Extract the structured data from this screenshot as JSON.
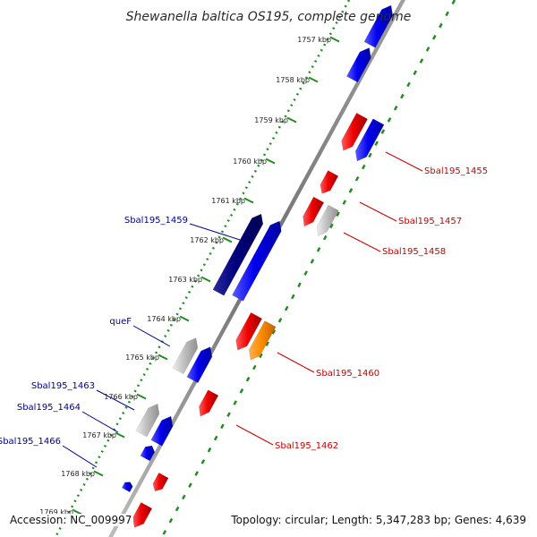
{
  "title": "Shewanella baltica OS195, complete genome",
  "footer": {
    "accession": "Accession: NC_009997",
    "summary": "Topology: circular; Length: 5,347,283 bp; Genes: 4,639"
  },
  "scale_labels": [
    "1757 kbp",
    "1758 kbp",
    "1759 kbp",
    "1760 kbp",
    "1761 kbp",
    "1762 kbp",
    "1763 kbp",
    "1764 kbp",
    "1765 kbp",
    "1766 kbp",
    "1767 kbp",
    "1768 kbp",
    "1769 kbp"
  ],
  "gene_labels_left": [
    "Sbal195_1459",
    "queF",
    "Sbal195_1463",
    "Sbal195_1464",
    "Sbal195_1466"
  ],
  "gene_labels_right": [
    "Sbal195_1455",
    "Sbal195_1457",
    "Sbal195_1458",
    "Sbal195_1460",
    "Sbal195_1462"
  ],
  "colors": {
    "forward_gene": "#0000ee",
    "forward_gene_selected": "#000080",
    "reverse_gene": "#ee0000",
    "other_gene": "#c0c0c0",
    "highlight_gene": "#ff8c00",
    "backbone": "#808080",
    "ruler_dots": "#228b22",
    "label_left": "#00008b",
    "label_right": "#cc0000"
  }
}
